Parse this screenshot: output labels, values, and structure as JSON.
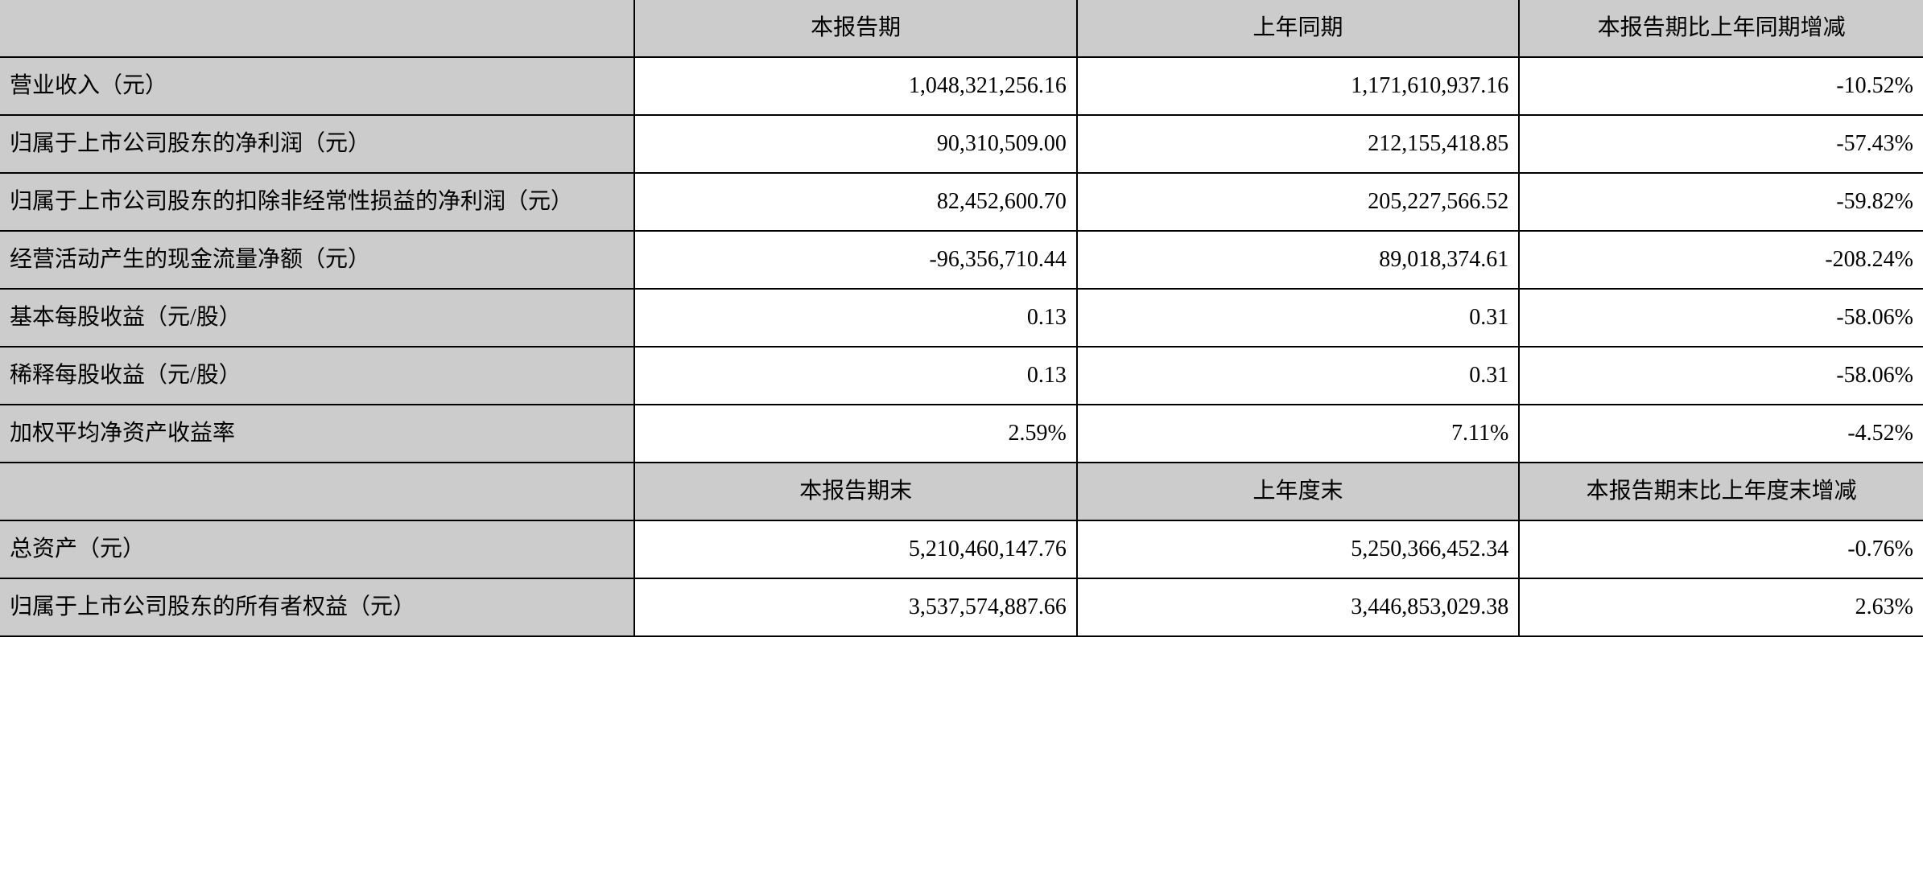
{
  "table": {
    "header1": {
      "col1": "",
      "col2": "本报告期",
      "col3": "上年同期",
      "col4": "本报告期比上年同期增减"
    },
    "rows1": [
      {
        "label": "营业收入（元）",
        "v1": "1,048,321,256.16",
        "v2": "1,171,610,937.16",
        "v3": "-10.52%"
      },
      {
        "label": "归属于上市公司股东的净利润（元）",
        "v1": "90,310,509.00",
        "v2": "212,155,418.85",
        "v3": "-57.43%"
      },
      {
        "label": "归属于上市公司股东的扣除非经常性损益的净利润（元）",
        "v1": "82,452,600.70",
        "v2": "205,227,566.52",
        "v3": "-59.82%"
      },
      {
        "label": "经营活动产生的现金流量净额（元）",
        "v1": "-96,356,710.44",
        "v2": "89,018,374.61",
        "v3": "-208.24%"
      },
      {
        "label": "基本每股收益（元/股）",
        "v1": "0.13",
        "v2": "0.31",
        "v3": "-58.06%"
      },
      {
        "label": "稀释每股收益（元/股）",
        "v1": "0.13",
        "v2": "0.31",
        "v3": "-58.06%"
      },
      {
        "label": "加权平均净资产收益率",
        "v1": "2.59%",
        "v2": "7.11%",
        "v3": "-4.52%"
      }
    ],
    "header2": {
      "col1": "",
      "col2": "本报告期末",
      "col3": "上年度末",
      "col4": "本报告期末比上年度末增减"
    },
    "rows2": [
      {
        "label": "总资产（元）",
        "v1": "5,210,460,147.76",
        "v2": "5,250,366,452.34",
        "v3": "-0.76%"
      },
      {
        "label": "归属于上市公司股东的所有者权益（元）",
        "v1": "3,537,574,887.66",
        "v2": "3,446,853,029.38",
        "v3": "2.63%"
      }
    ],
    "styling": {
      "header_bg": "#cccccc",
      "cell_bg": "#ffffff",
      "border_color": "#000000",
      "border_width": 2,
      "font_size": 28,
      "font_family": "SimSun",
      "label_align": "left",
      "value_align": "right",
      "header_align": "center"
    }
  }
}
